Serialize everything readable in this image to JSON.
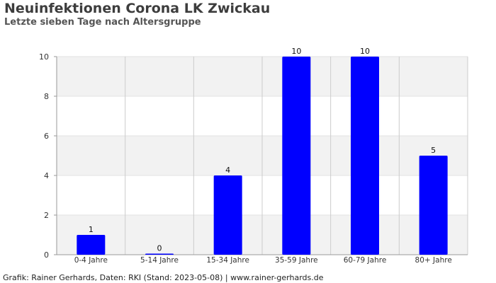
{
  "header": {
    "title": "Neuinfektionen Corona LK Zwickau",
    "subtitle": "Letzte sieben Tage nach Altersgruppe"
  },
  "footer": {
    "credit": "Grafik: Rainer Gerhards, Daten: RKI (Stand: 2023-05-08) | www.rainer-gerhards.de"
  },
  "colors": {
    "bar": "#0000ff",
    "band": "#f2f2f2",
    "grid": "#cccccc",
    "axis": "#999999",
    "text": "#333333"
  },
  "chart_data": {
    "type": "bar",
    "title": "Neuinfektionen Corona LK Zwickau",
    "subtitle": "Letzte sieben Tage nach Altersgruppe",
    "xlabel": "",
    "ylabel": "",
    "categories": [
      "0-4 Jahre",
      "5-14 Jahre",
      "15-34 Jahre",
      "35-59 Jahre",
      "60-79 Jahre",
      "80+ Jahre"
    ],
    "values": [
      1,
      0,
      4,
      10,
      10,
      5
    ],
    "ylim": [
      0,
      10
    ],
    "yticks": [
      0,
      2,
      4,
      6,
      8,
      10
    ],
    "data_labels": true,
    "grid": true,
    "legend": "none"
  }
}
